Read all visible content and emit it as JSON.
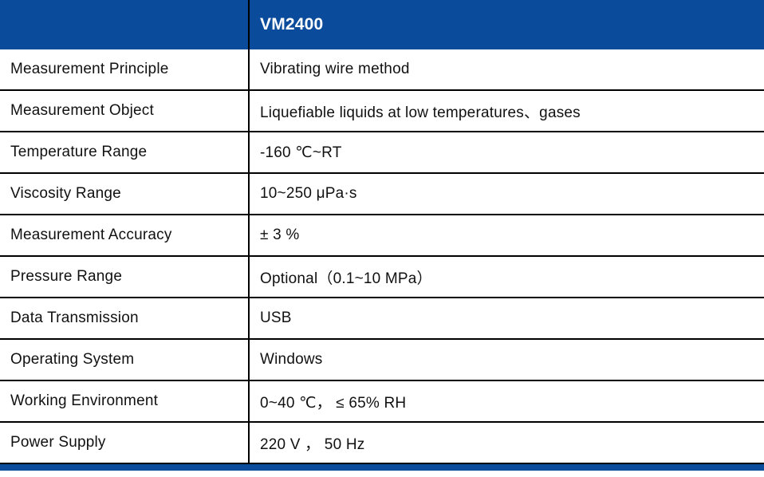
{
  "accent_color": "#0a4b9b",
  "divider_color": "#000000",
  "table": {
    "header": {
      "label": "",
      "model": "VM2400"
    },
    "rows": [
      {
        "label": "Measurement Principle",
        "value": "Vibrating wire method"
      },
      {
        "label": "Measurement Object",
        "value": "Liquefiable liquids at low temperatures、gases"
      },
      {
        "label": "Temperature Range",
        "value": "-160 ℃~RT"
      },
      {
        "label": "Viscosity Range",
        "value": "10~250 μPa·s"
      },
      {
        "label": "Measurement Accuracy",
        "value": "± 3 %"
      },
      {
        "label": "Pressure Range",
        "value": "Optional（0.1~10 MPa）"
      },
      {
        "label": "Data Transmission",
        "value": "USB"
      },
      {
        "label": "Operating System",
        "value": "Windows"
      },
      {
        "label": "Working Environment",
        "value": "0~40 ℃， ≤ 65% RH"
      },
      {
        "label": "Power Supply",
        "value": "220 V ， 50 Hz"
      }
    ]
  }
}
